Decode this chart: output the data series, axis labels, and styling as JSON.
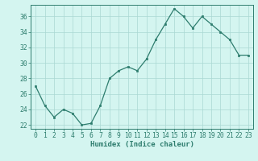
{
  "x": [
    0,
    1,
    2,
    3,
    4,
    5,
    6,
    7,
    8,
    9,
    10,
    11,
    12,
    13,
    14,
    15,
    16,
    17,
    18,
    19,
    20,
    21,
    22,
    23
  ],
  "y": [
    27,
    24.5,
    23,
    24,
    23.5,
    22,
    22.2,
    24.5,
    28,
    29,
    29.5,
    29,
    30.5,
    33,
    35,
    37,
    36,
    34.5,
    36,
    35,
    34,
    33,
    31,
    31
  ],
  "line_color": "#2e7d6e",
  "marker_color": "#2e7d6e",
  "bg_color": "#d4f5f0",
  "grid_color": "#aad8d3",
  "xlabel": "Humidex (Indice chaleur)",
  "ylim": [
    21.5,
    37.5
  ],
  "yticks": [
    22,
    24,
    26,
    28,
    30,
    32,
    34,
    36
  ],
  "xlim": [
    -0.5,
    23.5
  ],
  "xticks": [
    0,
    1,
    2,
    3,
    4,
    5,
    6,
    7,
    8,
    9,
    10,
    11,
    12,
    13,
    14,
    15,
    16,
    17,
    18,
    19,
    20,
    21,
    22,
    23
  ],
  "xlabel_fontsize": 6.5,
  "tick_fontsize": 5.8,
  "axes_color": "#2e7d6e",
  "spine_color": "#2e7d6e",
  "linewidth": 0.9,
  "markersize": 2.0
}
